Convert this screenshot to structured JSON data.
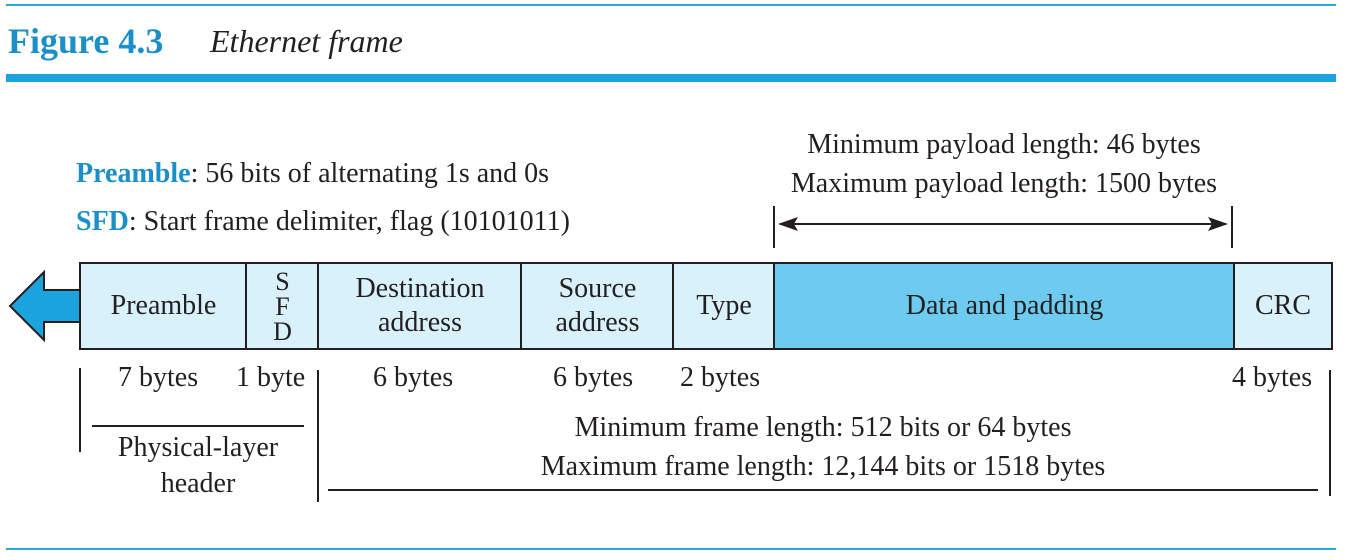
{
  "figure": {
    "number": "Figure 4.3",
    "title": "Ethernet frame"
  },
  "notes": {
    "preamble_term": "Preamble",
    "preamble_text": ": 56 bits of alternating 1s and 0s",
    "sfd_term": "SFD",
    "sfd_text": ": Start frame delimiter, flag (10101011)"
  },
  "payload": {
    "min": "Minimum payload length: 46 bytes",
    "max": "Maximum payload length: 1500 bytes"
  },
  "fields": {
    "preamble": "Preamble",
    "sfd": [
      "S",
      "F",
      "D"
    ],
    "destination": [
      "Destination",
      "address"
    ],
    "source": [
      "Source",
      "address"
    ],
    "type": "Type",
    "data": "Data and padding",
    "crc": "CRC"
  },
  "sizes": {
    "preamble": "7 bytes",
    "sfd": "1 byte",
    "destination": "6 bytes",
    "source": "6 bytes",
    "type": "2 bytes",
    "crc": "4 bytes"
  },
  "physical_header": [
    "Physical-layer",
    "header"
  ],
  "frame_length": {
    "min": "Minimum frame length: 512 bits or 64 bytes",
    "max": "Maximum frame length: 12,144 bits or 1518 bytes"
  },
  "colors": {
    "accent": "#1b8fc8",
    "field_light": "#d9f1fb",
    "field_dark": "#6ccbee",
    "arrow": "#1aa3dc"
  }
}
